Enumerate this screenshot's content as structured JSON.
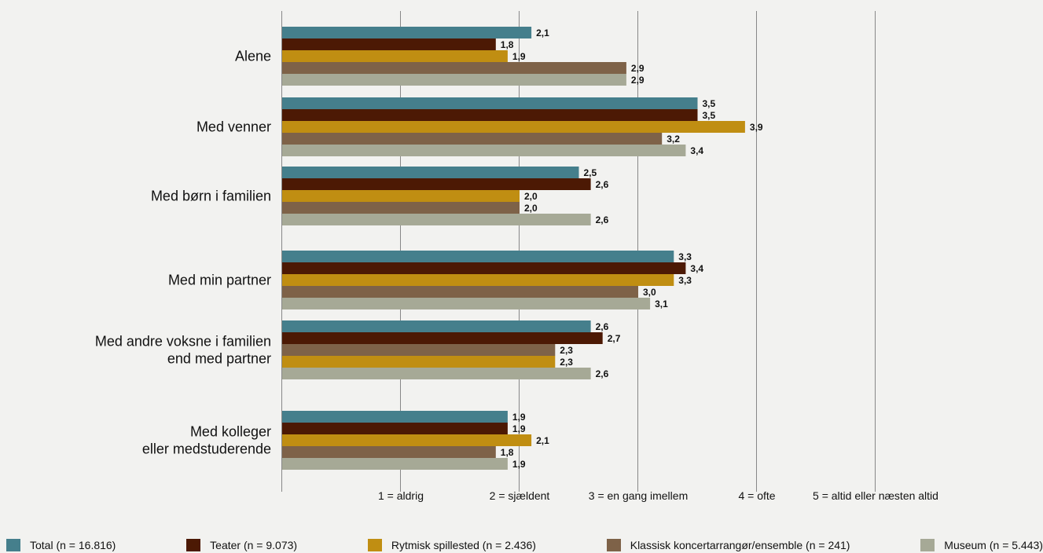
{
  "chart_data": {
    "type": "bar",
    "orientation": "horizontal",
    "categories": [
      [
        "Alene"
      ],
      [
        "Med venner"
      ],
      [
        "Med børn i familien"
      ],
      [
        "Med min partner"
      ],
      [
        "Med andre voksne i familien",
        "end med partner"
      ],
      [
        "Med kolleger",
        "eller medstuderende"
      ]
    ],
    "series": [
      {
        "name": "Total (n = 16.816)",
        "color": "#457f8c",
        "values": [
          2.1,
          3.5,
          2.5,
          3.3,
          2.6,
          1.9
        ]
      },
      {
        "name": "Teater (n = 9.073)",
        "color": "#4c1904",
        "values": [
          1.8,
          3.5,
          2.6,
          3.4,
          2.7,
          1.9
        ]
      },
      {
        "name": "Rytmisk spillested (n = 2.436)",
        "color": "#c08e12",
        "values": [
          1.9,
          3.9,
          2.0,
          3.3,
          2.3,
          2.1
        ]
      },
      {
        "name": "Klassisk koncertarrangør/ensemble (n = 241)",
        "color": "#7e6248",
        "values": [
          2.9,
          3.2,
          2.0,
          3.0,
          2.3,
          1.8
        ]
      },
      {
        "name": "Museum (n = 5.443)",
        "color": "#a6a996",
        "values": [
          2.9,
          3.4,
          2.6,
          3.1,
          2.6,
          1.9
        ]
      }
    ],
    "value_labels": [
      [
        "2,1",
        "1,8",
        "1,9",
        "2,9",
        "2,9"
      ],
      [
        "3,5",
        "3,5",
        "3,9",
        "3,2",
        "3,4"
      ],
      [
        "2,5",
        "2,6",
        "2,0",
        "2,0",
        "2,6"
      ],
      [
        "3,3",
        "3,4",
        "3,3",
        "3,0",
        "3,1"
      ],
      [
        "2,6",
        "2,7",
        "2,3",
        "2,3",
        "2,6"
      ],
      [
        "1,9",
        "1,9",
        "2,1",
        "1,8",
        "1,9"
      ]
    ],
    "ticks": [
      {
        "value": 1,
        "label": "1 = aldrig"
      },
      {
        "value": 2,
        "label": "2 = sjældent"
      },
      {
        "value": 3,
        "label": "3 = en gang imellem"
      },
      {
        "value": 4,
        "label": "4 = ofte"
      },
      {
        "value": 5,
        "label": "5 = altid eller næsten altid"
      }
    ],
    "xlim": [
      0,
      5
    ],
    "grid": true,
    "legend_position": "bottom"
  }
}
